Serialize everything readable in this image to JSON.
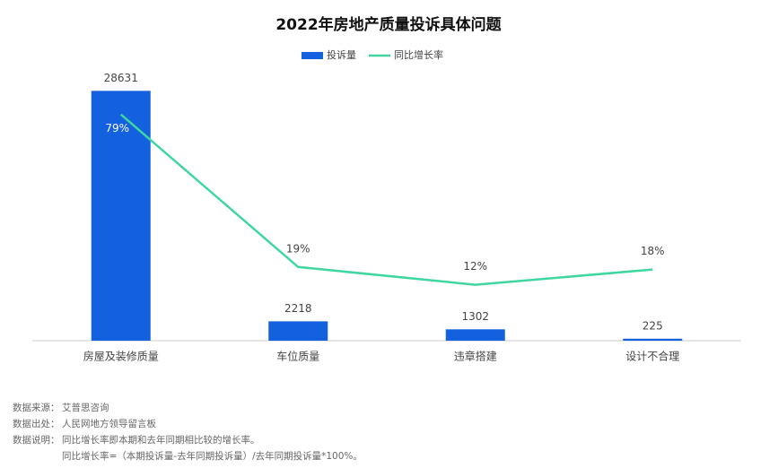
{
  "chart_data": {
    "type": "bar-line",
    "title": "2022年房地产质量投诉具体问题",
    "categories": [
      "房屋及装修质量",
      "车位质量",
      "违章搭建",
      "设计不合理"
    ],
    "series": [
      {
        "name": "投诉量",
        "type": "bar",
        "color": "#1461e0",
        "values": [
          28631,
          2218,
          1302,
          225
        ]
      },
      {
        "name": "同比增长率",
        "type": "line",
        "axis": "y2",
        "color": "#3fd6a0",
        "values": [
          79,
          19,
          12,
          18
        ],
        "value_labels": [
          "79%",
          "19%",
          "12%",
          "18%"
        ]
      }
    ],
    "ylim": [
      0,
      30000
    ],
    "y2lim": [
      -10,
      93
    ],
    "legend": "top"
  },
  "notes": [
    {
      "label": "数据来源：",
      "text": "艾普思咨询"
    },
    {
      "label": "数据出处：",
      "text": "人民网地方领导留言板"
    },
    {
      "label": "数据说明：",
      "text": "同比增长率即本期和去年同期相比较的增长率。"
    },
    {
      "text": "同比增长率=（本期投诉量-去年同期投诉量）/去年同期投诉量*100%。"
    }
  ]
}
